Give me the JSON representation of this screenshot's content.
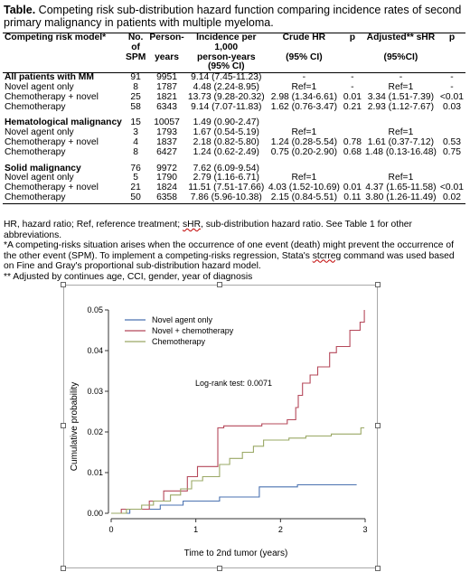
{
  "caption": {
    "label": "Table.",
    "text": " Competing risk sub-distribution hazard function comparing incidence rates of second primary malignancy in patients with multiple myeloma."
  },
  "table": {
    "headers": [
      {
        "key": "model",
        "line1": "Competing risk model*",
        "line2": ""
      },
      {
        "key": "n",
        "line1": "No. of",
        "line2": "SPM"
      },
      {
        "key": "py",
        "line1": "Person-",
        "line2": "years"
      },
      {
        "key": "inc",
        "line1": "Incidence per 1,000",
        "line2": "person-years (95% CI)"
      },
      {
        "key": "chr",
        "line1": "Crude HR",
        "line2": "(95% CI)"
      },
      {
        "key": "p1",
        "line1": "p",
        "line2": ""
      },
      {
        "key": "ahr",
        "line1": "Adjusted** sHR",
        "line2": "(95%CI)"
      },
      {
        "key": "p2",
        "line1": "p",
        "line2": ""
      }
    ],
    "rows": [
      {
        "type": "section",
        "cells": [
          "All patients with MM",
          "91",
          "9951",
          "9.14 (7.45-11.23)",
          "-",
          "-",
          "-",
          "-"
        ]
      },
      {
        "type": "row",
        "cells": [
          "Novel agent only",
          "8",
          "1787",
          "4.48 (2.24-8.95)",
          "Ref=1",
          "-",
          "Ref=1",
          "-"
        ]
      },
      {
        "type": "row",
        "cells": [
          "Chemotherapy + novel",
          "25",
          "1821",
          "13.73 (9.28-20.32)",
          "2.98 (1.34-6.61)",
          "0.01",
          "3.34 (1.51-7.39)",
          "<0.01"
        ]
      },
      {
        "type": "row",
        "cells": [
          "Chemotherapy",
          "58",
          "6343",
          "9.14 (7.07-11.83)",
          "1.62 (0.76-3.47)",
          "0.21",
          "2.93 (1.12-7.67)",
          "0.03"
        ]
      },
      {
        "type": "gap",
        "cells": [
          "",
          "",
          "",
          "",
          "",
          "",
          "",
          ""
        ]
      },
      {
        "type": "section",
        "cells": [
          "Hematological malignancy",
          "15",
          "10057",
          "1.49 (0.90-2.47)",
          "",
          "",
          "",
          ""
        ]
      },
      {
        "type": "row",
        "cells": [
          "Novel agent only",
          "3",
          "1793",
          "1.67 (0.54-5.19)",
          "Ref=1",
          "",
          "Ref=1",
          ""
        ]
      },
      {
        "type": "row",
        "cells": [
          "Chemotherapy + novel",
          "4",
          "1837",
          "2.18 (0.82-5.80)",
          "1.24 (0.28-5.54)",
          "0.78",
          "1.61 (0.37-7.12)",
          "0.53"
        ]
      },
      {
        "type": "row",
        "cells": [
          "Chemotherapy",
          "8",
          "6427",
          "1.24 (0.62-2.49)",
          "0.75 (0.20-2.90)",
          "0.68",
          "1.48 (0.13-16.48)",
          "0.75"
        ]
      },
      {
        "type": "gap",
        "cells": [
          "",
          "",
          "",
          "",
          "",
          "",
          "",
          ""
        ]
      },
      {
        "type": "section",
        "cells": [
          "Solid malignancy",
          "76",
          "9972",
          "7.62 (6.09-9.54)",
          "",
          "",
          "",
          ""
        ]
      },
      {
        "type": "row",
        "cells": [
          "Novel agent only",
          "5",
          "1790",
          "2.79 (1.16-6.71)",
          "Ref=1",
          "",
          "Ref=1",
          ""
        ]
      },
      {
        "type": "row",
        "cells": [
          "Chemotherapy + novel",
          "21",
          "1824",
          "11.51 (7.51-17.66)",
          "4.03 (1.52-10.69)",
          "0.01",
          "4.37 (1.65-11.58)",
          "<0.01"
        ]
      },
      {
        "type": "row",
        "cells": [
          "Chemotherapy",
          "50",
          "6358",
          "7.86 (5.96-10.38)",
          "2.15 (0.84-5.51)",
          "0.11",
          "3.80 (1.26-11.49)",
          "0.02"
        ]
      }
    ]
  },
  "notes": {
    "line1_pre": "HR, hazard ratio; Ref, reference treatment; ",
    "line1_word": "sHR",
    "line1_post": ", sub-distribution hazard ratio. See Table 1 for other abbreviations.",
    "line2_pre": "*A competing-risks situation arises when the occurrence of one event (death) might prevent the occurrence of the other event (SPM). To implement a competing-risks regression, Stata's ",
    "line2_word": "stcrreg",
    "line2_post": " command was used based on Fine and Gray's proportional sub-distribution hazard model.",
    "line3": "** Adjusted by continues age, CCI, gender, year of diagnosis"
  },
  "colors": {
    "novel_agent_only": "#4a72b0",
    "novel_plus_chemo": "#b5485a",
    "chemotherapy": "#9aa865",
    "axis": "#333333"
  },
  "chart_data": {
    "type": "line",
    "title": "",
    "xlabel": "Time to 2nd tumor (years)",
    "ylabel": "Cumulative probability",
    "annotation": "Log-rank test: 0.0071",
    "xlim": [
      0,
      3
    ],
    "ylim": [
      0,
      0.05
    ],
    "xticks": [
      0,
      1,
      2,
      3
    ],
    "yticks": [
      0.0,
      0.01,
      0.02,
      0.03,
      0.04,
      0.05
    ],
    "ytick_labels": [
      "0.00",
      "0.01",
      "0.02",
      "0.03",
      "0.04",
      "0.05"
    ],
    "legend_position": "top-left",
    "series": [
      {
        "name": "Novel agent only",
        "color_key": "novel_agent_only",
        "points": [
          [
            0,
            0
          ],
          [
            0.22,
            0
          ],
          [
            0.22,
            0.001
          ],
          [
            0.58,
            0.001
          ],
          [
            0.58,
            0.002
          ],
          [
            0.85,
            0.002
          ],
          [
            0.85,
            0.003
          ],
          [
            1.28,
            0.003
          ],
          [
            1.28,
            0.004
          ],
          [
            1.75,
            0.004
          ],
          [
            1.75,
            0.0065
          ],
          [
            2.2,
            0.0065
          ],
          [
            2.2,
            0.007
          ],
          [
            2.9,
            0.007
          ]
        ]
      },
      {
        "name": "Novel + chemotherapy",
        "color_key": "novel_plus_chemo",
        "points": [
          [
            0,
            0
          ],
          [
            0.12,
            0
          ],
          [
            0.12,
            0.001
          ],
          [
            0.45,
            0.001
          ],
          [
            0.45,
            0.003
          ],
          [
            0.62,
            0.003
          ],
          [
            0.62,
            0.0055
          ],
          [
            0.9,
            0.0055
          ],
          [
            0.9,
            0.009
          ],
          [
            1.02,
            0.009
          ],
          [
            1.02,
            0.0115
          ],
          [
            1.26,
            0.0115
          ],
          [
            1.26,
            0.021
          ],
          [
            1.33,
            0.021
          ],
          [
            1.33,
            0.0215
          ],
          [
            1.78,
            0.0215
          ],
          [
            1.78,
            0.022
          ],
          [
            2.08,
            0.022
          ],
          [
            2.08,
            0.023
          ],
          [
            2.18,
            0.023
          ],
          [
            2.18,
            0.026
          ],
          [
            2.21,
            0.026
          ],
          [
            2.21,
            0.029
          ],
          [
            2.26,
            0.029
          ],
          [
            2.26,
            0.032
          ],
          [
            2.35,
            0.032
          ],
          [
            2.35,
            0.034
          ],
          [
            2.44,
            0.034
          ],
          [
            2.44,
            0.036
          ],
          [
            2.58,
            0.036
          ],
          [
            2.58,
            0.0395
          ],
          [
            2.66,
            0.0395
          ],
          [
            2.66,
            0.041
          ],
          [
            2.82,
            0.041
          ],
          [
            2.82,
            0.045
          ],
          [
            2.94,
            0.045
          ],
          [
            2.94,
            0.047
          ],
          [
            2.99,
            0.047
          ],
          [
            2.99,
            0.05
          ]
        ]
      },
      {
        "name": "Chemotherapy",
        "color_key": "chemotherapy",
        "points": [
          [
            0,
            0
          ],
          [
            0.18,
            0
          ],
          [
            0.18,
            0.001
          ],
          [
            0.36,
            0.001
          ],
          [
            0.36,
            0.002
          ],
          [
            0.5,
            0.002
          ],
          [
            0.5,
            0.003
          ],
          [
            0.7,
            0.003
          ],
          [
            0.7,
            0.0045
          ],
          [
            0.82,
            0.0045
          ],
          [
            0.82,
            0.006
          ],
          [
            0.95,
            0.006
          ],
          [
            0.95,
            0.008
          ],
          [
            1.08,
            0.008
          ],
          [
            1.08,
            0.009
          ],
          [
            1.28,
            0.009
          ],
          [
            1.28,
            0.012
          ],
          [
            1.4,
            0.012
          ],
          [
            1.4,
            0.0135
          ],
          [
            1.55,
            0.0135
          ],
          [
            1.55,
            0.015
          ],
          [
            1.68,
            0.015
          ],
          [
            1.68,
            0.0165
          ],
          [
            1.8,
            0.0165
          ],
          [
            1.8,
            0.018
          ],
          [
            2.1,
            0.018
          ],
          [
            2.1,
            0.0185
          ],
          [
            2.3,
            0.0185
          ],
          [
            2.3,
            0.019
          ],
          [
            2.6,
            0.019
          ],
          [
            2.6,
            0.0195
          ],
          [
            2.95,
            0.0195
          ],
          [
            2.95,
            0.021
          ],
          [
            2.99,
            0.021
          ]
        ]
      }
    ]
  }
}
